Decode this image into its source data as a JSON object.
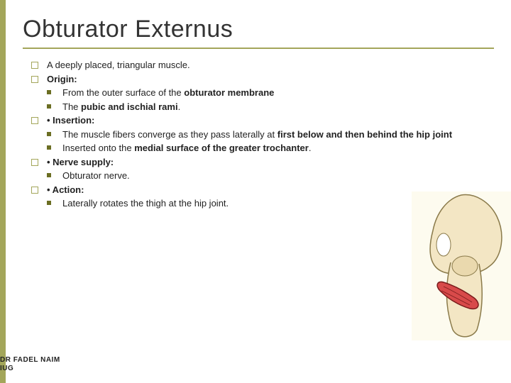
{
  "accent_color": "#a3a65a",
  "title": "Obturator Externus",
  "sections": [
    {
      "text_plain": "A deeply placed, triangular muscle.",
      "bold_all": false,
      "bold_phrases": [],
      "sub": null
    },
    {
      "text_plain": "Origin:",
      "bold_all": true,
      "bold_phrases": [],
      "sub": [
        {
          "pre": "From the outer surface of the ",
          "bold": "obturator membrane",
          "post": ""
        },
        {
          "pre": "The ",
          "bold": "pubic and ischial rami",
          "post": "."
        }
      ]
    },
    {
      "text_plain": "• Insertion:",
      "bold_all": true,
      "bold_phrases": [],
      "sub": [
        {
          "pre": "The muscle fibers converge as they pass laterally at ",
          "bold": "first below and then behind the hip joint",
          "post": ""
        },
        {
          "pre": "Inserted onto the ",
          "bold": "medial surface of the greater trochanter",
          "post": "."
        }
      ]
    },
    {
      "text_plain": "• Nerve supply:",
      "bold_all": true,
      "bold_phrases": [],
      "sub": [
        {
          "pre": "Obturator nerve.",
          "bold": "",
          "post": ""
        }
      ]
    },
    {
      "text_plain": "• Action:",
      "bold_all": true,
      "bold_phrases": [],
      "sub": [
        {
          "pre": "Laterally rotates the thigh at the hip joint.",
          "bold": "",
          "post": ""
        }
      ]
    }
  ],
  "footer_line1": "DR FADEL NAIM",
  "footer_line2": "IUG",
  "illustration": {
    "bone_fill": "#f3e6c4",
    "bone_stroke": "#8a7a4a",
    "muscle_fill": "#d84a4a",
    "muscle_stroke": "#7a1c1c",
    "bg": "#fdfbef"
  }
}
